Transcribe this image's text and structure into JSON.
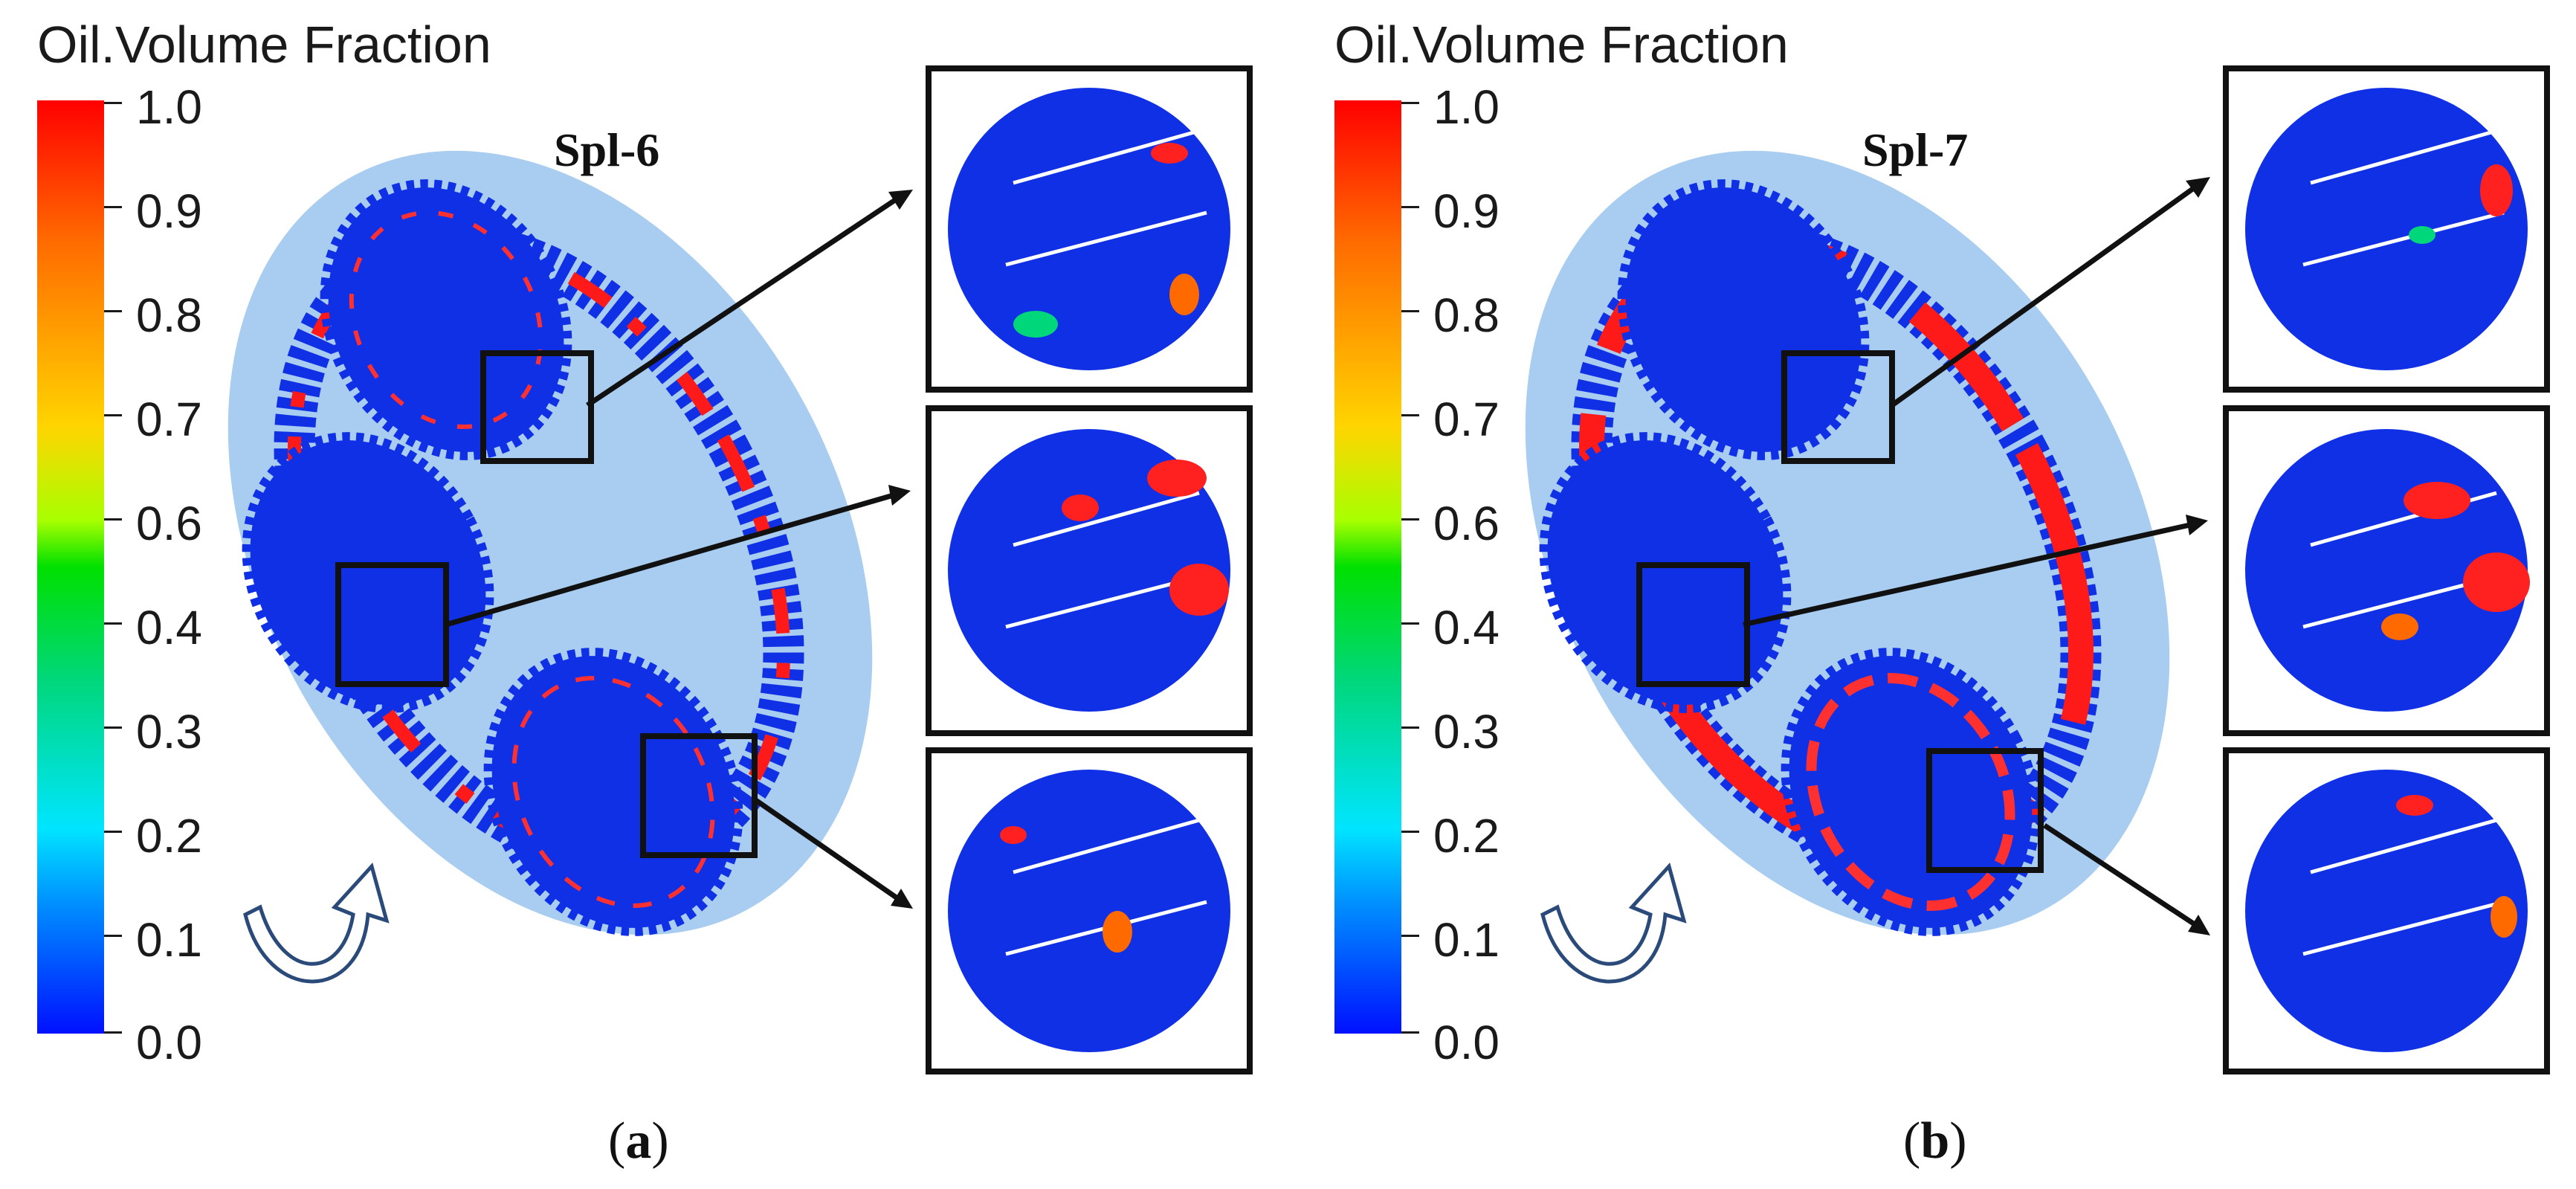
{
  "panels": [
    {
      "colorbar_title": "Oil.Volume Fraction",
      "ticks": [
        "1.0",
        "0.9",
        "0.8",
        "0.7",
        "0.6",
        "0.4",
        "0.3",
        "0.2",
        "0.1",
        "0.0"
      ],
      "sample_label": "Spl-6",
      "caption_open": "(",
      "caption_letter": "a",
      "caption_close": ")"
    },
    {
      "colorbar_title": "Oil.Volume Fraction",
      "ticks": [
        "1.0",
        "0.9",
        "0.8",
        "0.7",
        "0.6",
        "0.4",
        "0.3",
        "0.2",
        "0.1",
        "0.0"
      ],
      "sample_label": "Spl-7",
      "caption_open": "(",
      "caption_letter": "b",
      "caption_close": ")"
    }
  ],
  "colors": {
    "housing": "#a9cdf0",
    "gear_blue": "#1030e6",
    "oil_red": "#ff1a1a",
    "frame": "#111111"
  },
  "icons": [
    "rotation-arrow-icon"
  ]
}
